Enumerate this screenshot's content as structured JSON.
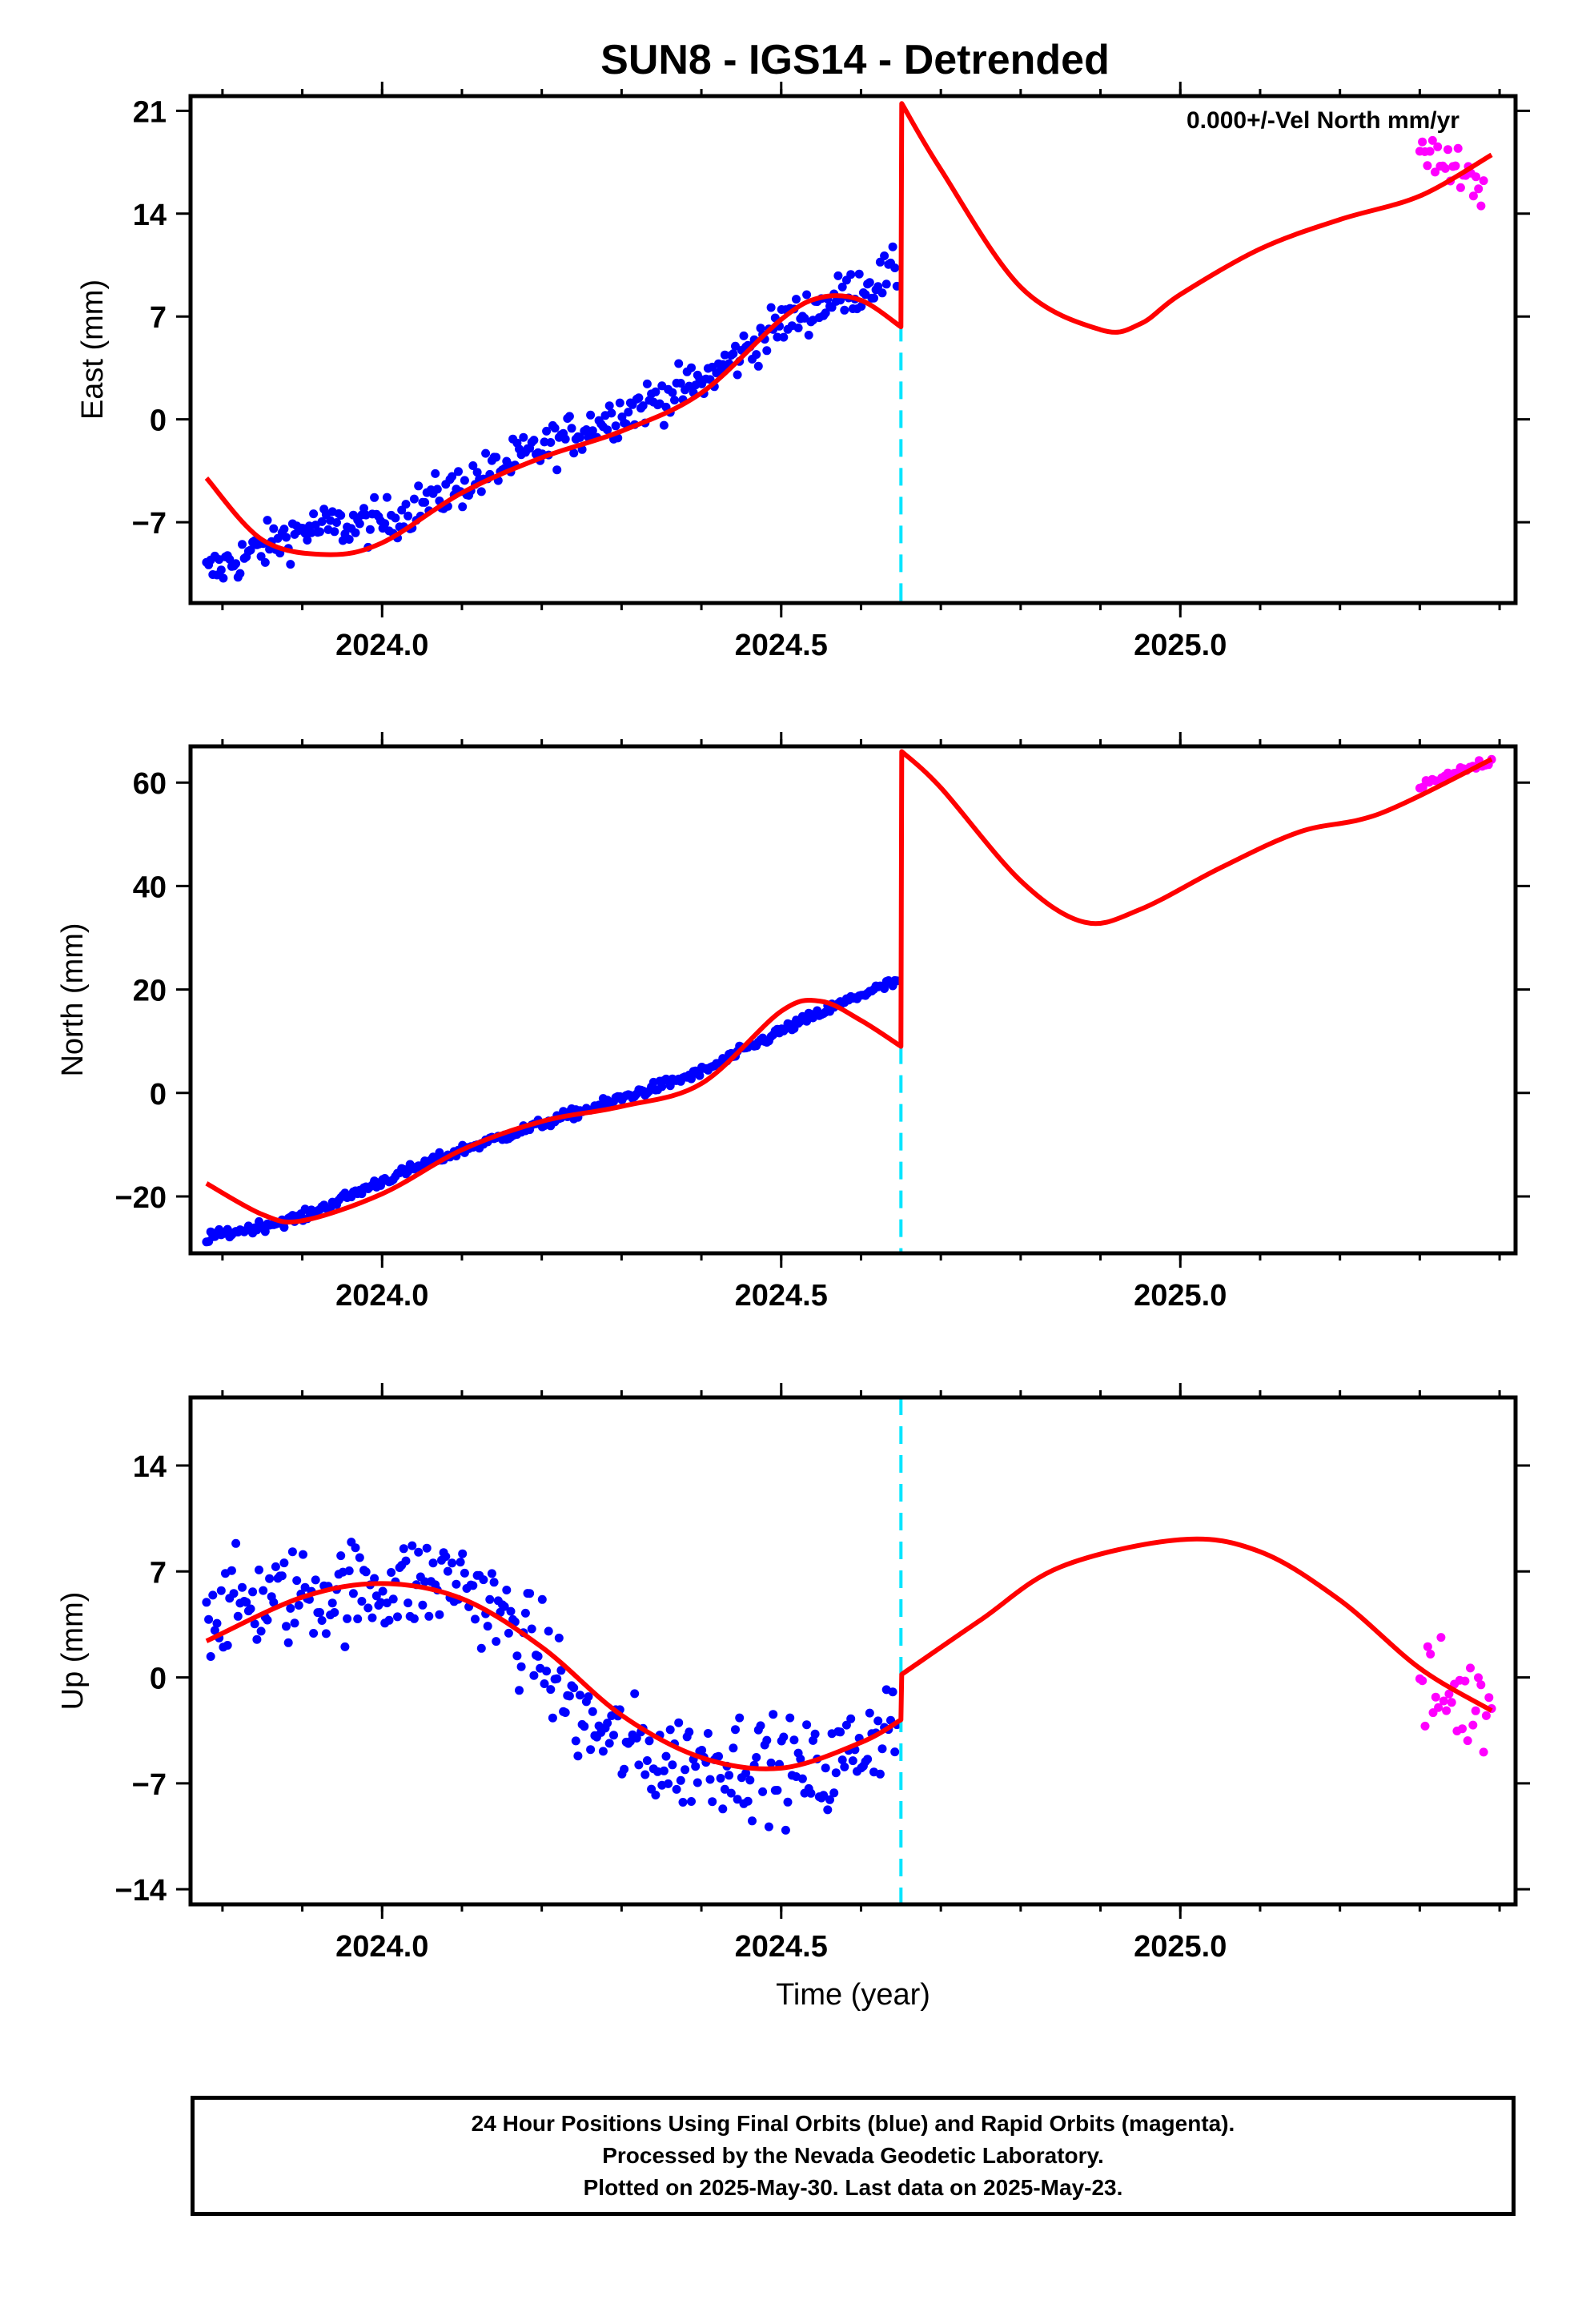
{
  "title": "SUN8 - IGS14 - Detrended",
  "colors": {
    "final": "#0000ff",
    "rapid": "#ff00ff",
    "model": "#ff0000",
    "event": "#00e5ff",
    "frame": "#000000"
  },
  "chart_data": [
    {
      "type": "scatter",
      "ylabel": "East (mm)",
      "annotation": "0.000+/-Vel North mm/yr",
      "xlim": [
        2023.76,
        2025.42
      ],
      "ylim": [
        -12.5,
        22
      ],
      "xticks": [
        2024.0,
        2024.5,
        2025.0
      ],
      "xtick_labels": [
        "2024.0",
        "2024.5",
        "2025.0"
      ],
      "yticks": [
        21,
        14,
        7,
        0,
        -7
      ],
      "ytick_labels": [
        "21",
        "14",
        "7",
        "0",
        "−7"
      ],
      "event_line_x": 2024.65,
      "event_line_range": [
        -12.5,
        6.5
      ],
      "series": [
        {
          "role": "final",
          "x_start": 2023.78,
          "x_end": 2024.645,
          "count": 330,
          "trend": [
            [
              2023.78,
              -10.5
            ],
            [
              2023.9,
              -7.5
            ],
            [
              2024.0,
              -7
            ],
            [
              2024.1,
              -4.5
            ],
            [
              2024.2,
              -2
            ],
            [
              2024.3,
              0.5
            ],
            [
              2024.4,
              2.5
            ],
            [
              2024.5,
              6.5
            ],
            [
              2024.6,
              9
            ],
            [
              2024.645,
              10
            ]
          ],
          "noise": 1.5
        },
        {
          "role": "rapid",
          "x_start": 2025.3,
          "x_end": 2025.38,
          "count": 26,
          "trend": [
            [
              2025.3,
              19
            ],
            [
              2025.38,
              15
            ]
          ],
          "noise": 1.8
        },
        {
          "role": "model",
          "points": [
            [
              2023.78,
              -4
            ],
            [
              2023.85,
              -8.2
            ],
            [
              2023.93,
              -9.2
            ],
            [
              2024.0,
              -8.4
            ],
            [
              2024.1,
              -5
            ],
            [
              2024.2,
              -2.6
            ],
            [
              2024.3,
              -0.8
            ],
            [
              2024.4,
              1.8
            ],
            [
              2024.5,
              6.8
            ],
            [
              2024.55,
              8.3
            ],
            [
              2024.6,
              8.1
            ],
            [
              2024.65,
              6.3
            ],
            [
              2024.651,
              21.5
            ],
            [
              2024.7,
              17
            ],
            [
              2024.8,
              9
            ],
            [
              2024.9,
              6.1
            ],
            [
              2024.95,
              6.5
            ],
            [
              2025.0,
              8.5
            ],
            [
              2025.1,
              11.6
            ],
            [
              2025.2,
              13.6
            ],
            [
              2025.3,
              15.2
            ],
            [
              2025.39,
              18
            ]
          ]
        }
      ]
    },
    {
      "type": "scatter",
      "ylabel": "North (mm)",
      "xlim": [
        2023.76,
        2025.42
      ],
      "ylim": [
        -31,
        67
      ],
      "xticks": [
        2024.0,
        2024.5,
        2025.0
      ],
      "xtick_labels": [
        "2024.0",
        "2024.5",
        "2025.0"
      ],
      "yticks": [
        60,
        40,
        20,
        0,
        -20
      ],
      "ytick_labels": [
        "60",
        "40",
        "20",
        "0",
        "−20"
      ],
      "event_line_x": 2024.65,
      "event_line_range": [
        -31,
        9
      ],
      "series": [
        {
          "role": "final",
          "x_start": 2023.78,
          "x_end": 2024.645,
          "count": 330,
          "trend": [
            [
              2023.78,
              -28
            ],
            [
              2023.9,
              -24
            ],
            [
              2024.0,
              -17
            ],
            [
              2024.1,
              -11
            ],
            [
              2024.2,
              -6
            ],
            [
              2024.3,
              -1
            ],
            [
              2024.4,
              4
            ],
            [
              2024.5,
              12
            ],
            [
              2024.6,
              19
            ],
            [
              2024.645,
              21.5
            ]
          ],
          "noise": 1.0
        },
        {
          "role": "rapid",
          "x_start": 2025.3,
          "x_end": 2025.39,
          "count": 24,
          "trend": [
            [
              2025.3,
              59
            ],
            [
              2025.39,
              64.5
            ]
          ],
          "noise": 1.0
        },
        {
          "role": "model",
          "points": [
            [
              2023.78,
              -17.5
            ],
            [
              2023.85,
              -23.5
            ],
            [
              2023.9,
              -24.7
            ],
            [
              2024.0,
              -19.5
            ],
            [
              2024.1,
              -11
            ],
            [
              2024.2,
              -5.5
            ],
            [
              2024.3,
              -2.6
            ],
            [
              2024.4,
              1.8
            ],
            [
              2024.5,
              15.8
            ],
            [
              2024.55,
              17.7
            ],
            [
              2024.6,
              14
            ],
            [
              2024.65,
              9
            ],
            [
              2024.651,
              66
            ],
            [
              2024.7,
              59
            ],
            [
              2024.8,
              41
            ],
            [
              2024.88,
              33
            ],
            [
              2024.95,
              35.5
            ],
            [
              2025.05,
              43.5
            ],
            [
              2025.15,
              50.5
            ],
            [
              2025.25,
              54
            ],
            [
              2025.39,
              64.5
            ]
          ]
        }
      ]
    },
    {
      "type": "scatter",
      "ylabel": "Up (mm)",
      "xlabel": "Time (year)",
      "xlim": [
        2023.76,
        2025.42
      ],
      "ylim": [
        -15,
        18.5
      ],
      "xticks": [
        2024.0,
        2024.5,
        2025.0
      ],
      "xtick_labels": [
        "2024.0",
        "2024.5",
        "2025.0"
      ],
      "yticks": [
        14,
        7,
        0,
        -7,
        -14
      ],
      "ytick_labels": [
        "14",
        "7",
        "0",
        "−7",
        "−14"
      ],
      "event_line_x": 2024.65,
      "event_line_range": [
        -15,
        18.5
      ],
      "series": [
        {
          "role": "final",
          "x_start": 2023.78,
          "x_end": 2024.645,
          "count": 330,
          "trend": [
            [
              2023.78,
              4.5
            ],
            [
              2023.9,
              5.5
            ],
            [
              2024.0,
              6
            ],
            [
              2024.1,
              6.5
            ],
            [
              2024.2,
              1.5
            ],
            [
              2024.25,
              -3
            ],
            [
              2024.35,
              -5.5
            ],
            [
              2024.45,
              -5.5
            ],
            [
              2024.55,
              -6.5
            ],
            [
              2024.645,
              -2.5
            ]
          ],
          "noise": 3.2
        },
        {
          "role": "rapid",
          "x_start": 2025.3,
          "x_end": 2025.39,
          "count": 28,
          "trend": [
            [
              2025.3,
              -1
            ],
            [
              2025.39,
              -2
            ]
          ],
          "noise": 3.5
        },
        {
          "role": "model",
          "points": [
            [
              2023.78,
              2.4
            ],
            [
              2023.9,
              5.3
            ],
            [
              2024.0,
              6.2
            ],
            [
              2024.1,
              5.2
            ],
            [
              2024.2,
              2
            ],
            [
              2024.3,
              -2.5
            ],
            [
              2024.4,
              -5.3
            ],
            [
              2024.5,
              -6
            ],
            [
              2024.6,
              -4.3
            ],
            [
              2024.65,
              -2.8
            ],
            [
              2024.651,
              0.2
            ],
            [
              2024.75,
              3.8
            ],
            [
              2024.85,
              7.3
            ],
            [
              2025.0,
              9.1
            ],
            [
              2025.1,
              8.3
            ],
            [
              2025.2,
              5.1
            ],
            [
              2025.3,
              0.6
            ],
            [
              2025.39,
              -2.2
            ]
          ]
        }
      ]
    }
  ],
  "footer": {
    "line1": "24 Hour Positions Using Final Orbits (blue) and Rapid Orbits (magenta).",
    "line2": "Processed by the Nevada Geodetic Laboratory.",
    "line3": "Plotted on 2025-May-30. Last data on 2025-May-23."
  }
}
